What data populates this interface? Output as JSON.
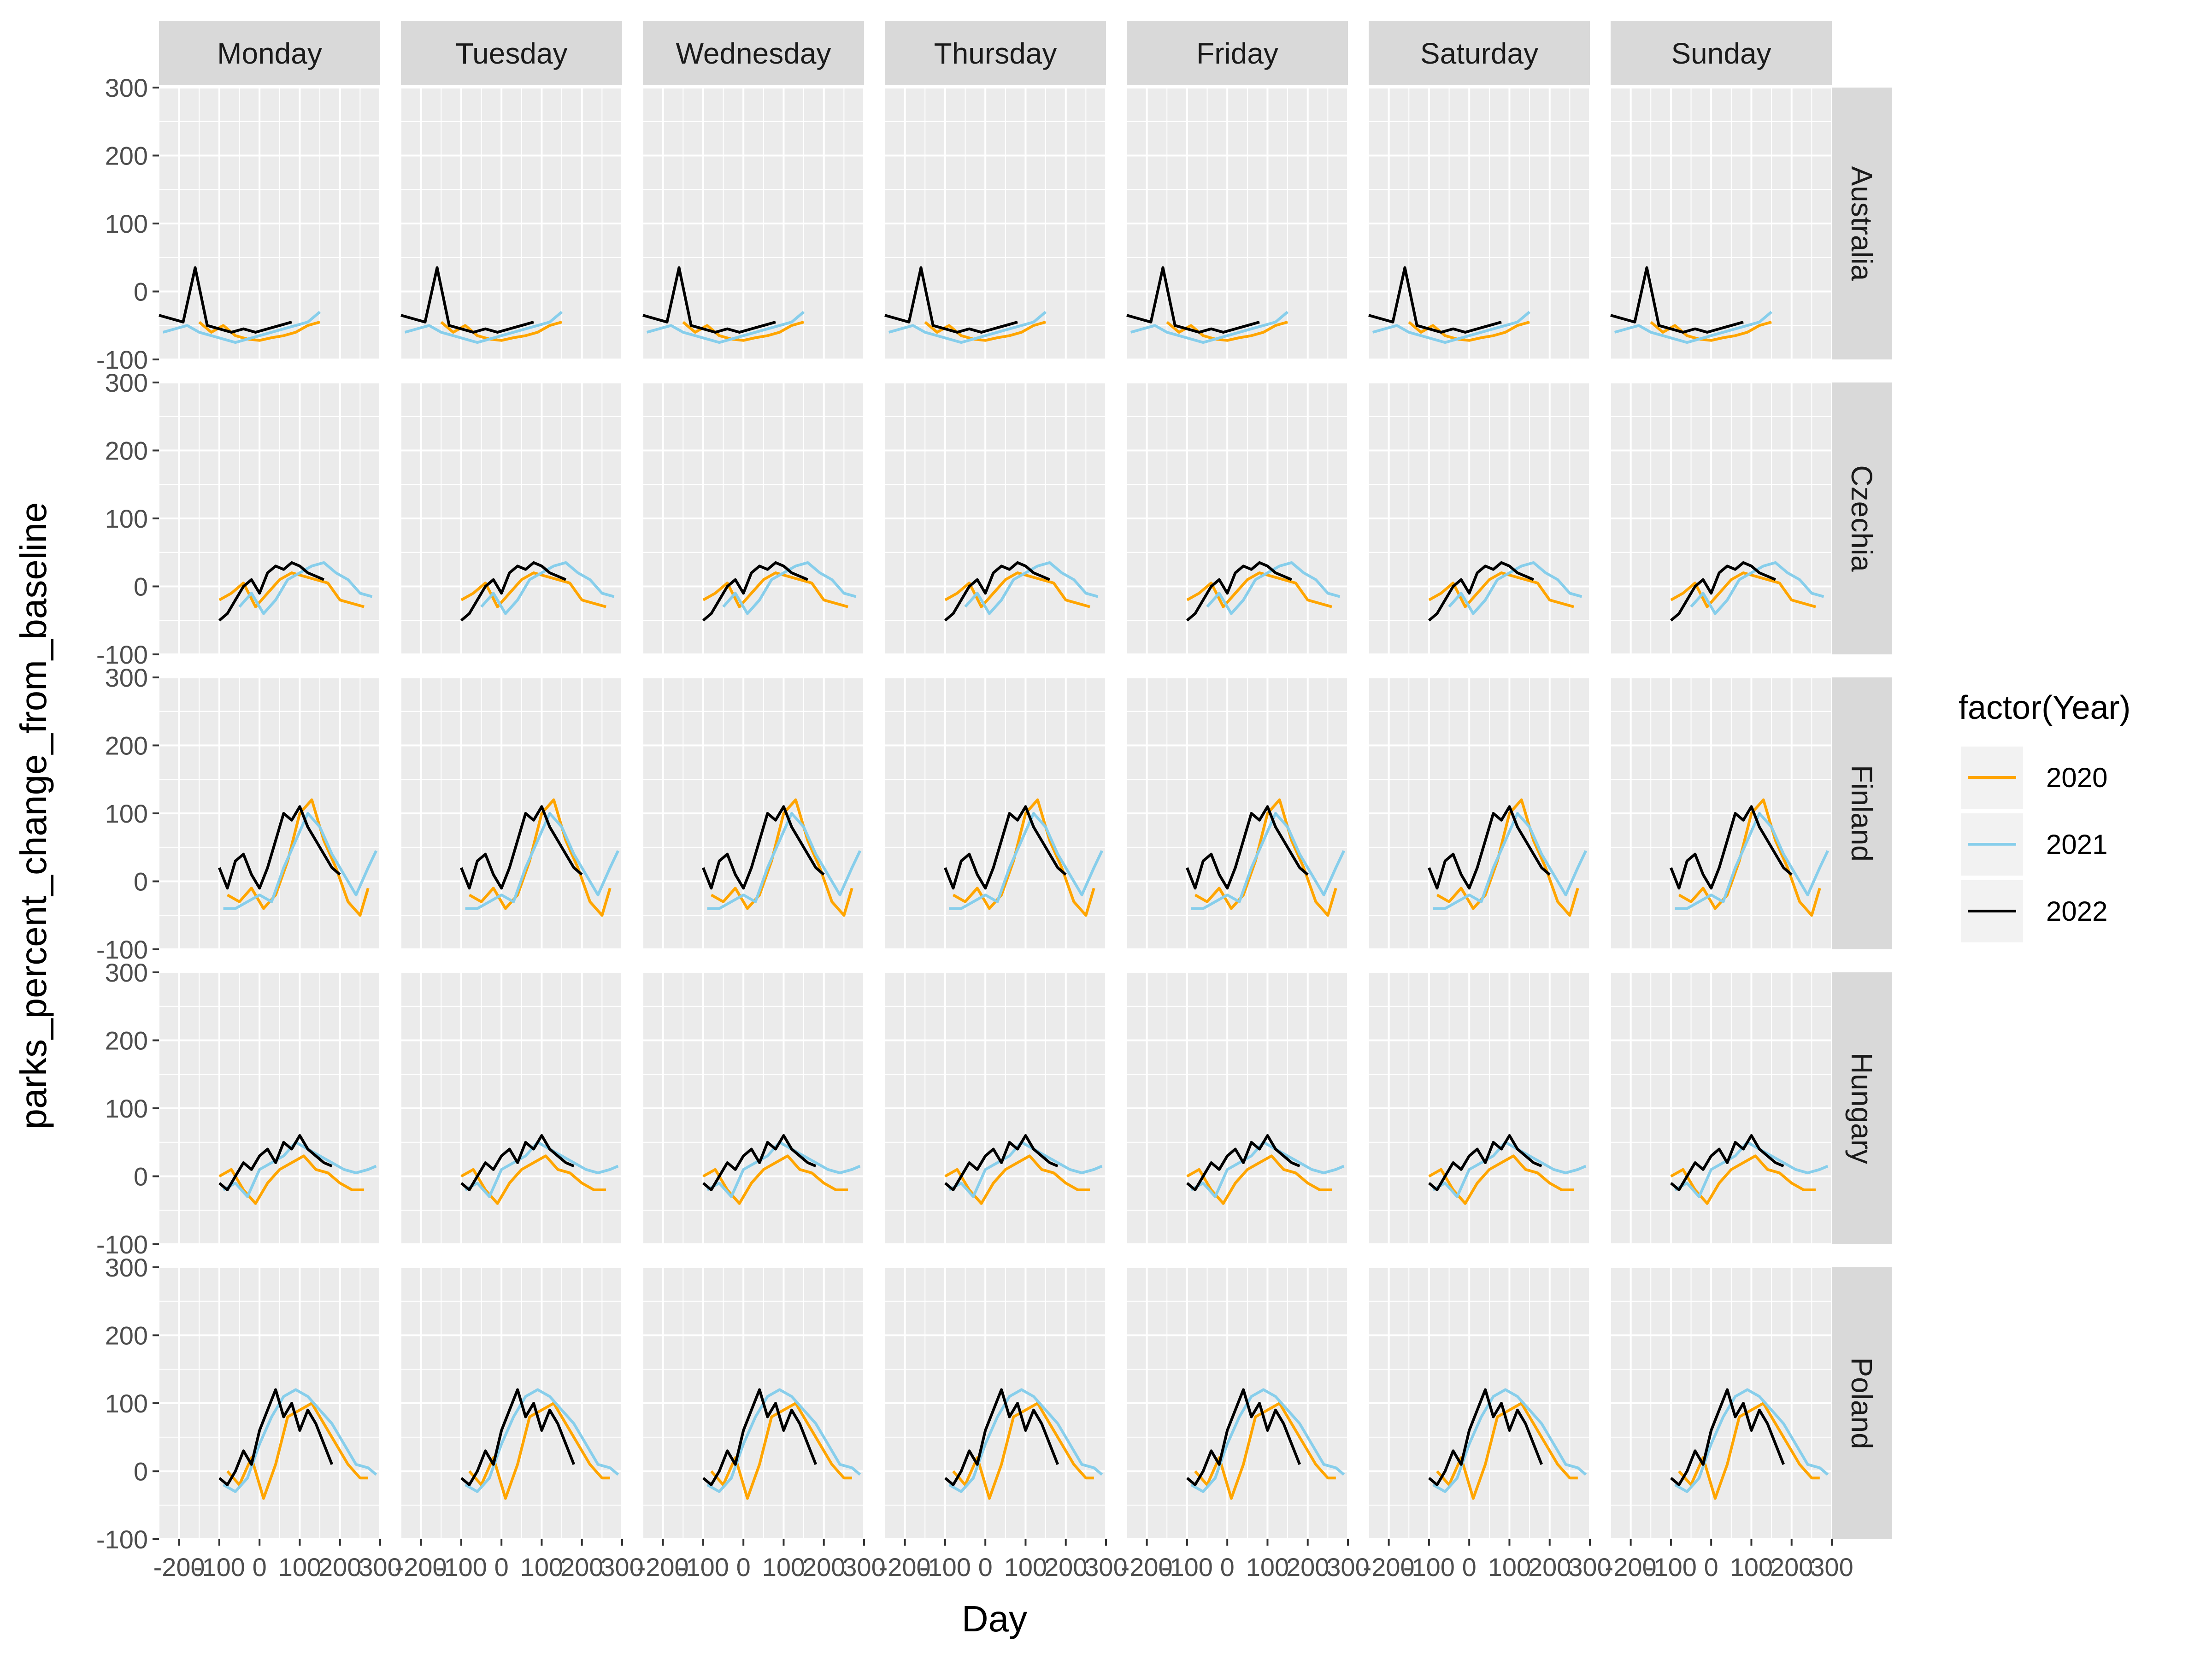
{
  "chart_data": {
    "type": "line",
    "facets": {
      "columns": [
        "Monday",
        "Tuesday",
        "Wednesday",
        "Thursday",
        "Friday",
        "Saturday",
        "Sunday"
      ],
      "rows": [
        "Australia",
        "Czechia",
        "Finland",
        "Hungary",
        "Poland"
      ]
    },
    "xlabel": "Day",
    "ylabel": "parks_percent_change_from_baseline",
    "xlim": [
      -250,
      300
    ],
    "ylim": [
      -100,
      300
    ],
    "x_ticks": [
      -200,
      -100,
      0,
      100,
      200,
      300
    ],
    "x_tick_labels": [
      "-200",
      "-100",
      "0",
      "100",
      "200",
      "300"
    ],
    "y_ticks": [
      -100,
      0,
      100,
      200,
      300
    ],
    "y_tick_labels": [
      "-100",
      "0",
      "100",
      "200",
      "300"
    ],
    "legend": {
      "title": "factor(Year)",
      "placement": "right",
      "entries": [
        {
          "label": "2020",
          "color": "#FFA500"
        },
        {
          "label": "2021",
          "color": "#87CEEB"
        },
        {
          "label": "2022",
          "color": "#000000"
        }
      ]
    },
    "grid": true,
    "panel_background": "#EBEBEB",
    "strip_background": "#D9D9D9",
    "series": [
      {
        "name": "2020",
        "color": "#FFA500",
        "rows": {
          "Australia": {
            "x": [
              -150,
              -120,
              -90,
              -60,
              -30,
              0,
              30,
              60,
              90,
              120,
              150
            ],
            "y": [
              -45,
              -60,
              -50,
              -65,
              -70,
              -72,
              -68,
              -65,
              -60,
              -50,
              -45
            ]
          },
          "Czechia": {
            "x": [
              -100,
              -70,
              -40,
              -10,
              20,
              50,
              80,
              110,
              140,
              170,
              200,
              230,
              260
            ],
            "y": [
              -20,
              -10,
              5,
              -30,
              -10,
              10,
              20,
              15,
              10,
              5,
              -20,
              -25,
              -30
            ]
          },
          "Finland": {
            "x": [
              -80,
              -50,
              -20,
              10,
              40,
              70,
              100,
              130,
              160,
              190,
              220,
              250,
              270
            ],
            "y": [
              -20,
              -30,
              -10,
              -40,
              -20,
              30,
              100,
              120,
              60,
              20,
              -30,
              -50,
              -10
            ]
          },
          "Hungary": {
            "x": [
              -100,
              -70,
              -40,
              -10,
              20,
              50,
              80,
              110,
              140,
              170,
              200,
              230,
              260
            ],
            "y": [
              0,
              10,
              -20,
              -40,
              -10,
              10,
              20,
              30,
              10,
              5,
              -10,
              -20,
              -20
            ]
          },
          "Poland": {
            "x": [
              -80,
              -50,
              -20,
              10,
              40,
              70,
              100,
              130,
              160,
              190,
              220,
              250,
              270
            ],
            "y": [
              0,
              -20,
              20,
              -40,
              10,
              80,
              90,
              100,
              70,
              40,
              10,
              -10,
              -10
            ]
          }
        }
      },
      {
        "name": "2021",
        "color": "#87CEEB",
        "rows": {
          "Australia": {
            "x": [
              -240,
              -210,
              -180,
              -150,
              -120,
              -90,
              -60,
              -30,
              0,
              30,
              60,
              90,
              120,
              150
            ],
            "y": [
              -60,
              -55,
              -50,
              -60,
              -65,
              -70,
              -75,
              -70,
              -65,
              -60,
              -55,
              -50,
              -45,
              -30
            ]
          },
          "Czechia": {
            "x": [
              -50,
              -20,
              10,
              40,
              70,
              100,
              130,
              160,
              190,
              220,
              250,
              280
            ],
            "y": [
              -30,
              -10,
              -40,
              -20,
              10,
              20,
              30,
              35,
              20,
              10,
              -10,
              -15
            ]
          },
          "Finland": {
            "x": [
              -90,
              -60,
              -30,
              0,
              30,
              60,
              90,
              120,
              150,
              180,
              210,
              240,
              270,
              290
            ],
            "y": [
              -40,
              -40,
              -30,
              -20,
              -30,
              20,
              60,
              100,
              80,
              40,
              10,
              -20,
              20,
              45
            ]
          },
          "Hungary": {
            "x": [
              -90,
              -60,
              -30,
              0,
              30,
              60,
              90,
              120,
              150,
              180,
              210,
              240,
              270,
              290
            ],
            "y": [
              -20,
              -10,
              -30,
              10,
              20,
              30,
              50,
              40,
              30,
              20,
              10,
              5,
              10,
              15
            ]
          },
          "Poland": {
            "x": [
              -90,
              -60,
              -30,
              0,
              30,
              60,
              90,
              120,
              150,
              180,
              210,
              240,
              270,
              290
            ],
            "y": [
              -20,
              -30,
              -10,
              40,
              80,
              110,
              120,
              110,
              90,
              70,
              40,
              10,
              5,
              -5
            ]
          }
        }
      },
      {
        "name": "2022",
        "color": "#000000",
        "rows": {
          "Australia": {
            "x": [
              -250,
              -220,
              -190,
              -160,
              -130,
              -100,
              -70,
              -40,
              -10,
              20,
              50,
              80
            ],
            "y": [
              -35,
              -40,
              -45,
              35,
              -50,
              -55,
              -60,
              -55,
              -60,
              -55,
              -50,
              -45
            ]
          },
          "Czechia": {
            "x": [
              -100,
              -80,
              -60,
              -40,
              -20,
              0,
              20,
              40,
              60,
              80,
              100,
              120,
              140,
              160
            ],
            "y": [
              -50,
              -40,
              -20,
              0,
              10,
              -10,
              20,
              30,
              25,
              35,
              30,
              20,
              15,
              10
            ]
          },
          "Finland": {
            "x": [
              -100,
              -80,
              -60,
              -40,
              -20,
              0,
              20,
              40,
              60,
              80,
              100,
              120,
              140,
              160,
              180,
              200
            ],
            "y": [
              20,
              -10,
              30,
              40,
              10,
              -10,
              20,
              60,
              100,
              90,
              110,
              80,
              60,
              40,
              20,
              10
            ]
          },
          "Hungary": {
            "x": [
              -100,
              -80,
              -60,
              -40,
              -20,
              0,
              20,
              40,
              60,
              80,
              100,
              120,
              140,
              160,
              180
            ],
            "y": [
              -10,
              -20,
              0,
              20,
              10,
              30,
              40,
              20,
              50,
              40,
              60,
              40,
              30,
              20,
              15
            ]
          },
          "Poland": {
            "x": [
              -100,
              -80,
              -60,
              -40,
              -20,
              0,
              20,
              40,
              60,
              80,
              100,
              120,
              140,
              160,
              180
            ],
            "y": [
              -10,
              -20,
              0,
              30,
              10,
              60,
              90,
              120,
              80,
              100,
              60,
              90,
              70,
              40,
              10
            ]
          }
        }
      }
    ]
  }
}
